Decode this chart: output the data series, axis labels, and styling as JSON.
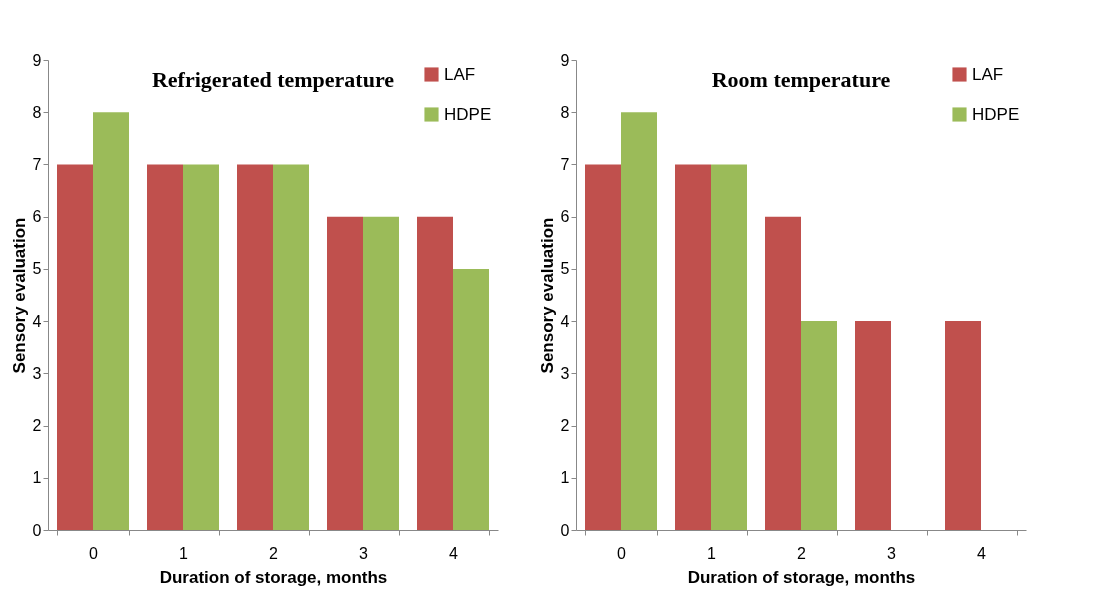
{
  "chart_data": [
    {
      "type": "bar",
      "title": "Refrigerated temperature",
      "xlabel": "Duration of storage, months",
      "ylabel": "Sensory evaluation",
      "categories": [
        "0",
        "1",
        "2",
        "3",
        "4"
      ],
      "ylim": [
        0,
        9
      ],
      "yticks": [
        0,
        1,
        2,
        3,
        4,
        5,
        6,
        7,
        8,
        9
      ],
      "grid": false,
      "legend": "top right",
      "series": [
        {
          "name": "LAF",
          "color": "#c0504d",
          "values": [
            7,
            7,
            7,
            6,
            6
          ]
        },
        {
          "name": "HDPE",
          "color": "#9bbb59",
          "values": [
            8,
            7,
            7,
            6,
            5
          ]
        }
      ]
    },
    {
      "type": "bar",
      "title": "Room temperature",
      "xlabel": "Duration of storage, months",
      "ylabel": "Sensory evaluation",
      "categories": [
        "0",
        "1",
        "2",
        "3",
        "4"
      ],
      "ylim": [
        0,
        9
      ],
      "yticks": [
        0,
        1,
        2,
        3,
        4,
        5,
        6,
        7,
        8,
        9
      ],
      "grid": false,
      "legend": "top right",
      "series": [
        {
          "name": "LAF",
          "color": "#c0504d",
          "values": [
            7,
            7,
            6,
            4,
            4
          ]
        },
        {
          "name": "HDPE",
          "color": "#9bbb59",
          "values": [
            8,
            7,
            4,
            null,
            null
          ]
        }
      ]
    }
  ]
}
